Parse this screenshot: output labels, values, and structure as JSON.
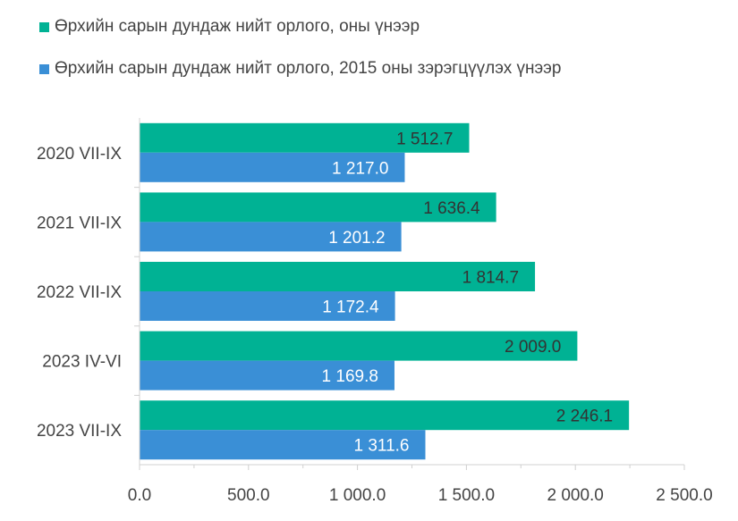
{
  "chart_data": {
    "type": "bar",
    "orientation": "horizontal",
    "categories": [
      "2020 VII-IX",
      "2021 VII-IX",
      "2022 VII-IX",
      "2023 IV-VI",
      "2023 VII-IX"
    ],
    "series": [
      {
        "name": "Өрхийн сарын дундаж нийт орлого, оны үнээр",
        "color": "#00B294",
        "values": [
          1512.7,
          1636.4,
          1814.7,
          2009.0,
          2246.1
        ],
        "labels": [
          "1 512.7",
          "1 636.4",
          "1 814.7",
          "2 009.0",
          "2 246.1"
        ]
      },
      {
        "name": "Өрхийн сарын дундаж нийт орлого, 2015 оны зэрэгцүүлэх үнээр",
        "color": "#3A8FD6",
        "values": [
          1217.0,
          1201.2,
          1172.4,
          1169.8,
          1311.6
        ],
        "labels": [
          "1 217.0",
          "1 201.2",
          "1 172.4",
          "1 169.8",
          "1 311.6"
        ]
      }
    ],
    "xlim": [
      0,
      2500
    ],
    "xticks": [
      0,
      500,
      1000,
      1500,
      2000,
      2500
    ],
    "xtick_labels": [
      "0.0",
      "500.0",
      "1 000.0",
      "1 500.0",
      "2 000.0",
      "2 500.0"
    ],
    "legend_position": "top-left",
    "grid": false
  }
}
